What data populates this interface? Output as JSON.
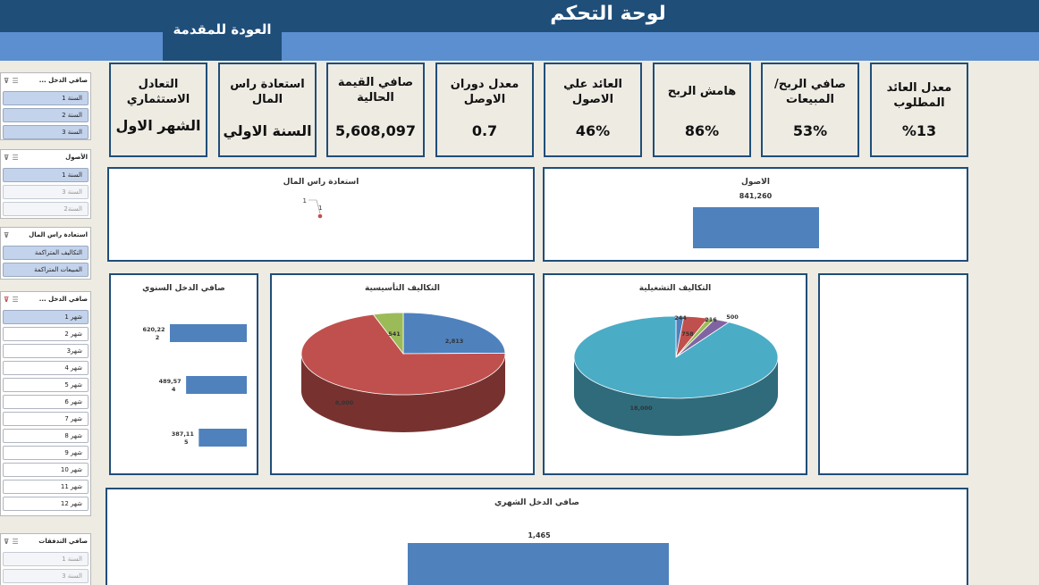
{
  "header": {
    "title": "لوحة التحكم",
    "back_label": "العودة للمقدمة"
  },
  "kpis": [
    {
      "label": "معدل العائد المطلوب",
      "value": "%13"
    },
    {
      "label": "صافي الربح/المبيعات",
      "value": "53%"
    },
    {
      "label": "هامش الربح",
      "value": "86%"
    },
    {
      "label": "العائد علي الاصول",
      "value": "46%"
    },
    {
      "label": "معدل دوران الاوصل",
      "value": "0.7"
    },
    {
      "label": "صافي القيمة الحالية",
      "value": "5,608,097"
    },
    {
      "label": "استعادة راس المال",
      "value": "السنة الاولي"
    },
    {
      "label": "التعادل الاستثماري",
      "value": "الشهر الاول"
    }
  ],
  "slicers": {
    "net_income": {
      "title": "صافي الدخل ...",
      "items": [
        "السنة 1",
        "السنة 2",
        "السنة 3"
      ]
    },
    "assets": {
      "title": "الأصول",
      "items": [
        "السنة 1",
        "السنة 3",
        "السنة2"
      ]
    },
    "payback": {
      "title": "استعادة راس المال",
      "items": [
        "التكاليف المتراكمة",
        "المبيعات المتراكمة"
      ]
    },
    "monthly": {
      "title": "صافي الدخل ...",
      "items": [
        "شهر 1",
        "شهر 2",
        "شهر3",
        "شهر 4",
        "شهر 5",
        "شهر 6",
        "شهر 7",
        "شهر 8",
        "شهر 9",
        "شهر 10",
        "شهر 11",
        "شهر 12"
      ]
    },
    "cashflow": {
      "title": "صافي التدفقات",
      "items": [
        "السنة 1",
        "السنة 3"
      ]
    }
  },
  "chart_data": [
    {
      "type": "scatter",
      "title": "استعادة راس المال",
      "points": [
        {
          "x": 1,
          "y": 1
        }
      ],
      "labels": [
        "1",
        "1"
      ]
    },
    {
      "type": "bar",
      "title": "الاصول",
      "categories": [
        ""
      ],
      "values": [
        841260
      ],
      "data_labels": [
        "841,260"
      ]
    },
    {
      "type": "bar",
      "title": "صافي الدخل السنوي",
      "orientation": "horizontal",
      "categories": [
        "السنة 1",
        "السنة 2",
        "السنة 3"
      ],
      "values": [
        620222,
        489574,
        387115
      ],
      "data_labels": [
        "620,22\n2",
        "489,57\n4",
        "387,11\n5"
      ]
    },
    {
      "type": "pie",
      "title": "التكاليف التأسيسية",
      "slices": [
        {
          "label": "2,813",
          "value": 2813,
          "color": "#4f81bd"
        },
        {
          "label": "8,000",
          "value": 8000,
          "color": "#c0504d"
        },
        {
          "label": "541",
          "value": 541,
          "color": "#9bbb59"
        }
      ]
    },
    {
      "type": "pie",
      "title": "التكاليف التشغيلية",
      "slices": [
        {
          "label": "244",
          "value": 244,
          "color": "#4f81bd"
        },
        {
          "label": "758",
          "value": 758,
          "color": "#c0504d"
        },
        {
          "label": "216",
          "value": 216,
          "color": "#9bbb59"
        },
        {
          "label": "500",
          "value": 500,
          "color": "#8064a2"
        },
        {
          "label": "18,000",
          "value": 18000,
          "color": "#4bacc6"
        }
      ]
    },
    {
      "type": "bar",
      "title": "صافي الدخل الشهري",
      "categories": [
        ""
      ],
      "values": [
        1465
      ],
      "data_labels": [
        "1,465"
      ]
    }
  ]
}
